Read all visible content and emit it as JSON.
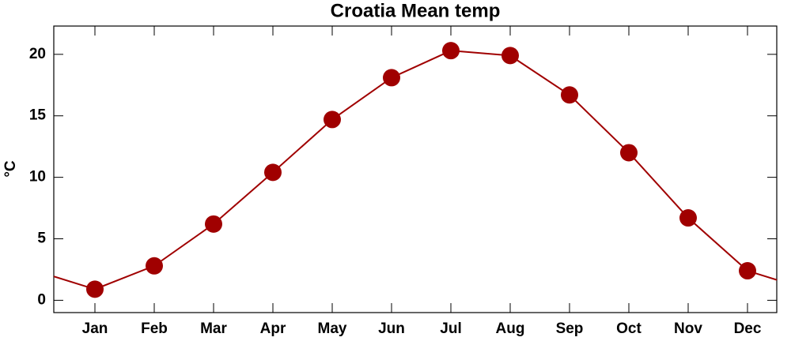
{
  "chart_data": {
    "type": "line",
    "title": "Croatia Mean temp",
    "y_label": "°C",
    "categories": [
      "Jan",
      "Feb",
      "Mar",
      "Apr",
      "May",
      "Jun",
      "Jul",
      "Aug",
      "Sep",
      "Oct",
      "Nov",
      "Dec"
    ],
    "values": [
      0.9,
      2.8,
      6.2,
      10.4,
      14.7,
      18.1,
      20.3,
      19.9,
      16.7,
      12.0,
      6.7,
      2.4
    ],
    "color": "#a00000",
    "ylim": [
      -1,
      22.3
    ],
    "yticks": [
      0,
      5,
      10,
      15,
      20
    ]
  }
}
